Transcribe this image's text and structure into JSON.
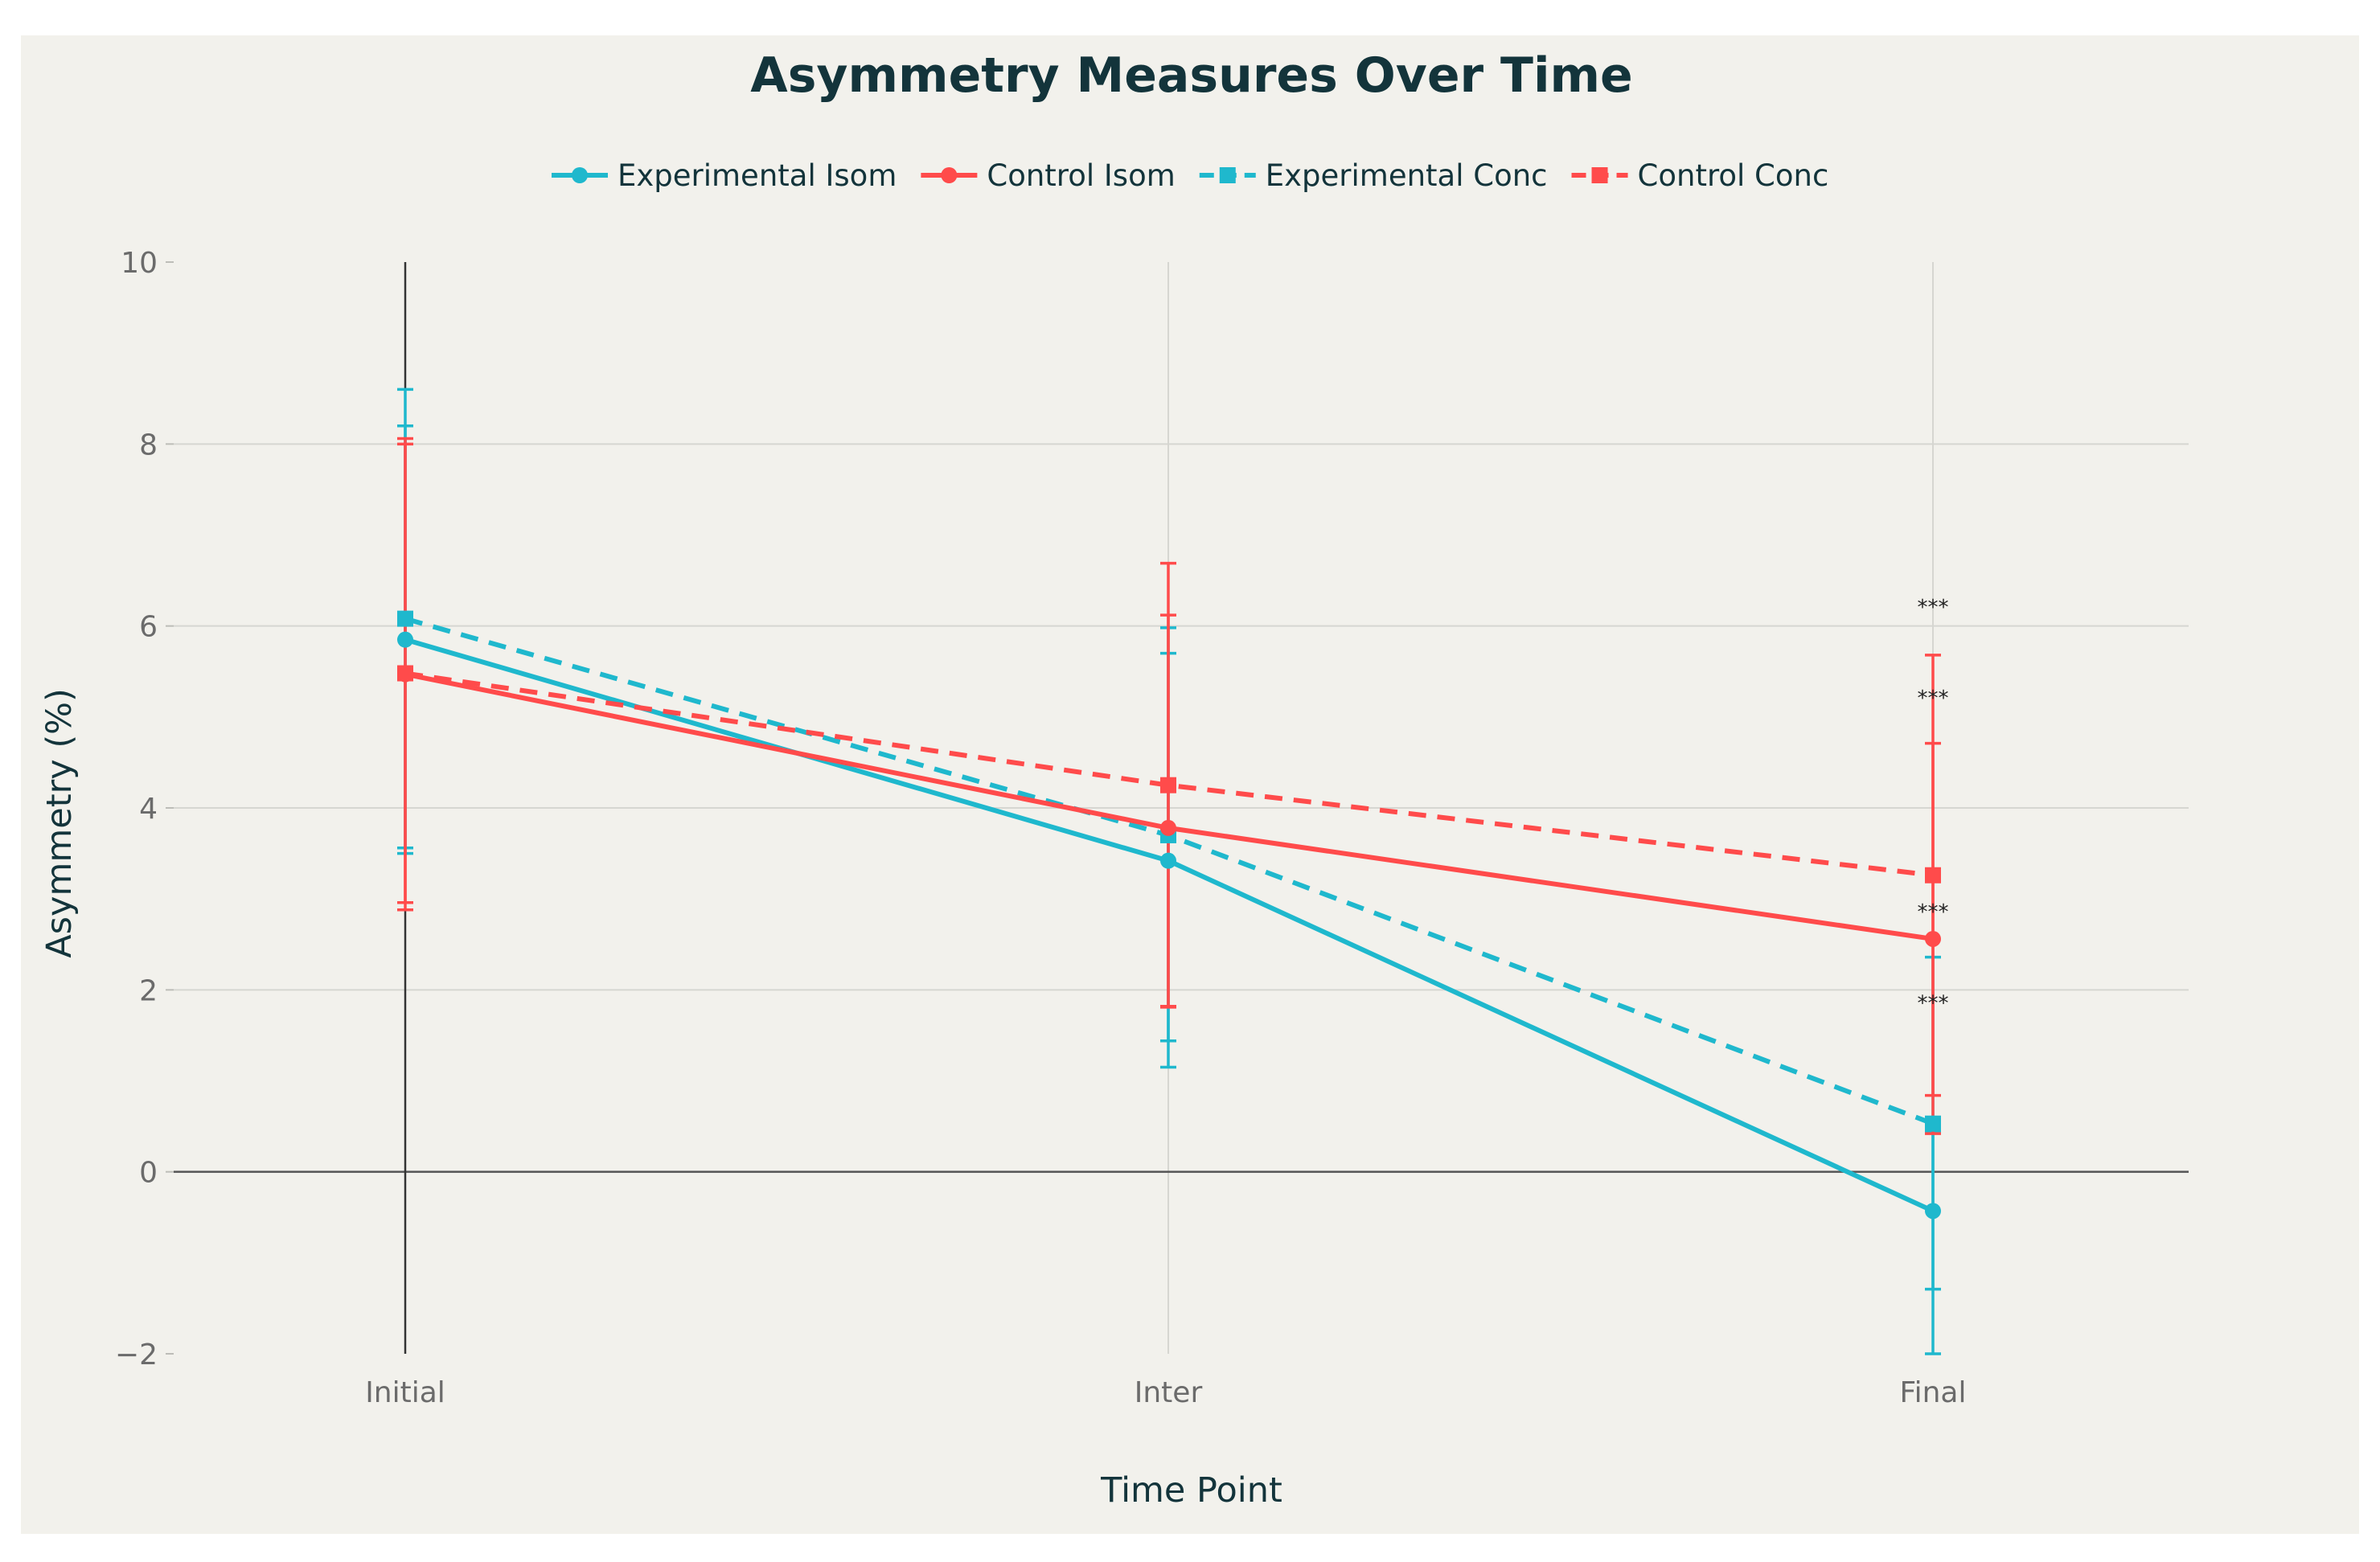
{
  "chart_data": {
    "type": "line",
    "title": "Asymmetry Measures Over Time",
    "xlabel": "Time Point",
    "ylabel": "Asymmetry (%)",
    "categories": [
      "Initial",
      "Inter",
      "Final"
    ],
    "ylim": [
      -2,
      10
    ],
    "yticks": [
      -2,
      0,
      2,
      4,
      6,
      8,
      10
    ],
    "ytick_labels": [
      "−2",
      "0",
      "2",
      "4",
      "6",
      "8",
      "10"
    ],
    "grid": true,
    "legend_position": "top-center",
    "series": [
      {
        "name": "Experimental Isom",
        "color": "#1fb8cd",
        "dash": "solid",
        "marker": "circle",
        "values": [
          5.85,
          3.42,
          -0.43
        ],
        "error_low": [
          3.5,
          1.15,
          -2.0
        ],
        "error_high": [
          8.2,
          5.7,
          0.45
        ]
      },
      {
        "name": "Control Isom",
        "color": "#ff4b4b",
        "dash": "solid",
        "marker": "circle",
        "values": [
          5.47,
          3.78,
          2.56
        ],
        "error_low": [
          2.88,
          1.82,
          0.42
        ],
        "error_high": [
          8.06,
          6.12,
          4.71
        ]
      },
      {
        "name": "Experimental Conc",
        "color": "#1fb8cd",
        "dash": "dash",
        "marker": "square",
        "values": [
          6.08,
          3.7,
          0.53
        ],
        "error_low": [
          3.56,
          1.44,
          -1.29
        ],
        "error_high": [
          8.6,
          5.98,
          2.36
        ]
      },
      {
        "name": "Control Conc",
        "color": "#ff4b4b",
        "dash": "dash",
        "marker": "square",
        "values": [
          5.48,
          4.25,
          3.26
        ],
        "error_low": [
          2.96,
          1.81,
          0.84
        ],
        "error_high": [
          8.0,
          6.69,
          5.68
        ]
      }
    ],
    "annotations": [
      {
        "category": "Final",
        "y": 6.2,
        "text": "***"
      },
      {
        "category": "Final",
        "y": 5.2,
        "text": "***"
      },
      {
        "category": "Final",
        "y": 2.85,
        "text": "***"
      },
      {
        "category": "Final",
        "y": 1.85,
        "text": "***"
      }
    ]
  }
}
